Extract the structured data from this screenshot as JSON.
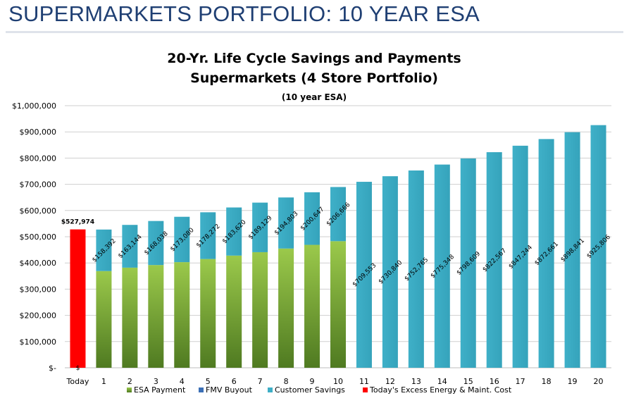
{
  "page": {
    "title": "SUPERMARKETS PORTFOLIO: 10 YEAR ESA"
  },
  "chart_data": {
    "type": "bar",
    "stacked": true,
    "title": "20-Yr. Life Cycle Savings and Payments",
    "subtitle": "Supermarkets (4 Store Portfolio)",
    "subtitle2": "(10 year ESA)",
    "ylim": [
      0,
      1000000
    ],
    "yticks": [
      0,
      100000,
      200000,
      300000,
      400000,
      500000,
      600000,
      700000,
      800000,
      900000,
      1000000
    ],
    "ytick_labels": [
      "$-",
      "$100,000",
      "$200,000",
      "$300,000",
      "$400,000",
      "$500,000",
      "$600,000",
      "$700,000",
      "$800,000",
      "$900,000",
      "$1,000,000"
    ],
    "grid": true,
    "legend_position": "bottom",
    "categories": [
      "Today",
      "1",
      "2",
      "3",
      "4",
      "5",
      "6",
      "7",
      "8",
      "9",
      "10",
      "11",
      "12",
      "13",
      "14",
      "15",
      "16",
      "17",
      "18",
      "19",
      "20"
    ],
    "series": [
      {
        "name": "ESA Payment",
        "color": "#7fb63a",
        "values": [
          0,
          369000,
          382000,
          392000,
          403000,
          415000,
          428000,
          441000,
          455000,
          469000,
          483000,
          0,
          0,
          0,
          0,
          0,
          0,
          0,
          0,
          0,
          0
        ]
      },
      {
        "name": "FMV Buyout",
        "color": "#3b6fb6",
        "values": [
          0,
          0,
          0,
          0,
          0,
          0,
          0,
          0,
          0,
          0,
          0,
          0,
          0,
          0,
          0,
          0,
          0,
          0,
          0,
          0,
          0
        ]
      },
      {
        "name": "Customer Savings",
        "color": "#3eaec6",
        "values": [
          0,
          158392,
          163144,
          168038,
          173080,
          178272,
          183620,
          189129,
          194803,
          200647,
          206666,
          709553,
          730840,
          752765,
          775348,
          798609,
          822567,
          847244,
          872661,
          898841,
          925806
        ],
        "labels": [
          "",
          "$158,392",
          "$163,144",
          "$168,038",
          "$173,080",
          "$178,272",
          "$183,620",
          "$189,129",
          "$194,803",
          "$200,647",
          "$206,666",
          "$709,553",
          "$730,840",
          "$752,765",
          "$775,348",
          "$798,609",
          "$822,567",
          "$847,244",
          "$872,661",
          "$898,841",
          "$925,806"
        ]
      },
      {
        "name": "Today's Excess Energy & Maint. Cost",
        "color": "#ff0000",
        "values": [
          527974,
          0,
          0,
          0,
          0,
          0,
          0,
          0,
          0,
          0,
          0,
          0,
          0,
          0,
          0,
          0,
          0,
          0,
          0,
          0,
          0
        ],
        "labels": [
          "$527,974"
        ]
      }
    ],
    "annotations": [
      "$"
    ]
  }
}
